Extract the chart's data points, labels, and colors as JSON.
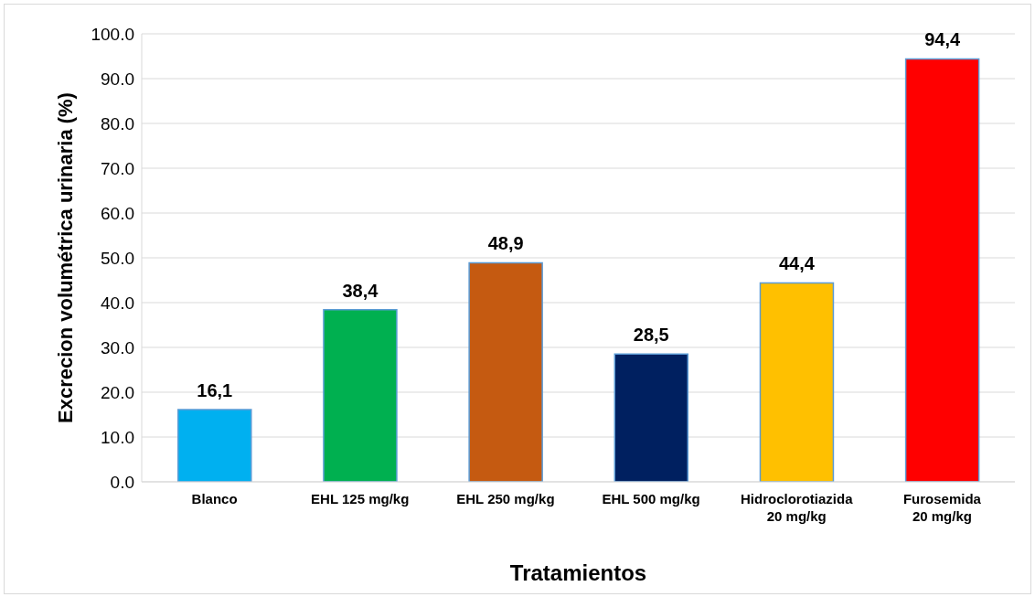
{
  "chart_data": {
    "type": "bar",
    "xlabel": "Tratamientos",
    "ylabel": "Excrecion volumétrica urinaria (%)",
    "categories": [
      "Blanco",
      "EHL 125 mg/kg",
      "EHL 250 mg/kg",
      "EHL 500 mg/kg",
      "Hidroclorotiazida\n20 mg/kg",
      "Furosemida\n20 mg/kg"
    ],
    "values": [
      16.1,
      38.4,
      48.9,
      28.5,
      44.4,
      94.4
    ],
    "value_labels": [
      "16,1",
      "38,4",
      "48,9",
      "28,5",
      "44,4",
      "94,4"
    ],
    "colors": [
      "#00b0f0",
      "#00b050",
      "#c55a11",
      "#002060",
      "#ffc000",
      "#ff0000"
    ],
    "ylim": [
      0,
      100
    ],
    "yticks": [
      {
        "value": 0,
        "label": "0.0"
      },
      {
        "value": 10,
        "label": "10.0"
      },
      {
        "value": 20,
        "label": "20.0"
      },
      {
        "value": 30,
        "label": "30.0"
      },
      {
        "value": 40,
        "label": "40.0"
      },
      {
        "value": 50,
        "label": "50.0"
      },
      {
        "value": 60,
        "label": "60.0"
      },
      {
        "value": 70,
        "label": "70.0"
      },
      {
        "value": 80,
        "label": "80.0"
      },
      {
        "value": 90,
        "label": "90.0"
      },
      {
        "value": 100,
        "label": "100.0"
      }
    ],
    "grid": "y",
    "legend": false
  }
}
